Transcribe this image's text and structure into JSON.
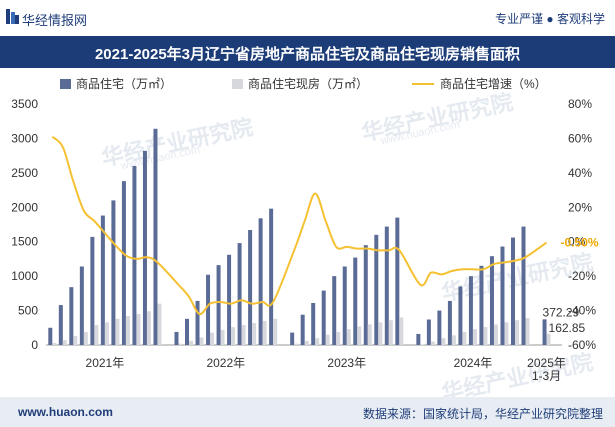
{
  "header": {
    "brand": "华经情报网",
    "slogan": "专业严谨 ● 客观科学"
  },
  "title": "2021-2025年3月辽宁省房地产商品住宅及商品住宅现房销售面积",
  "legend": {
    "sales": "商品住宅（万㎡）",
    "ready": "商品住宅现房（万㎡）",
    "growth": "商品住宅增速（%）"
  },
  "footer": {
    "website": "www.huaon.com",
    "source": "数据来源：国家统计局，华经产业研究院整理"
  },
  "watermark": {
    "text": "华经产业研究院",
    "url": "www.huaon.com"
  },
  "colors": {
    "sales_bar": "#5a6b95",
    "ready_bar": "#d6d8dd",
    "growth_line": "#f5c132",
    "title_bg": "#1c3c78",
    "last_value_label": "#f0a800"
  },
  "chart_data": {
    "type": "bar",
    "y_left": {
      "min": 0,
      "max": 3500,
      "ticks": [
        0,
        500,
        1000,
        1500,
        2000,
        2500,
        3000,
        3500
      ]
    },
    "y_right": {
      "min": -60,
      "max": 80,
      "ticks": [
        "-60%",
        "-40%",
        "-20%",
        "0%",
        "20%",
        "40%",
        "60%",
        "80%"
      ]
    },
    "x_group_labels": [
      "2021年",
      "2022年",
      "2023年",
      "2024年",
      "2025年\n1-3月"
    ],
    "groups": [
      {
        "label": "2021年",
        "sales": [
          250,
          580,
          840,
          1140,
          1570,
          1880,
          2100,
          2380,
          2600,
          2820,
          3140
        ],
        "ready": [
          30,
          70,
          130,
          190,
          290,
          330,
          380,
          420,
          450,
          490,
          600
        ],
        "growth": [
          61,
          55,
          35,
          18,
          12,
          5,
          -2,
          -8,
          -10,
          -9,
          -12
        ]
      },
      {
        "label": "2022年",
        "sales": [
          190,
          380,
          640,
          1020,
          1160,
          1310,
          1480,
          1670,
          1840,
          1980
        ],
        "ready": [
          20,
          60,
          110,
          180,
          220,
          260,
          290,
          320,
          350,
          380
        ],
        "growth": [
          -25,
          -32,
          -42,
          -36,
          -35,
          -36,
          -34,
          -36,
          -35,
          -35
        ]
      },
      {
        "label": "2023年",
        "sales": [
          180,
          440,
          610,
          790,
          1000,
          1140,
          1270,
          1450,
          1600,
          1720,
          1850
        ],
        "ready": [
          20,
          60,
          100,
          150,
          190,
          230,
          270,
          300,
          330,
          360,
          400
        ],
        "growth": [
          -5,
          12,
          28,
          12,
          -3,
          -3,
          -4,
          -4,
          -5,
          -5,
          -5
        ]
      },
      {
        "label": "2024年",
        "sales": [
          160,
          370,
          500,
          640,
          850,
          1000,
          1150,
          1290,
          1430,
          1560,
          1720
        ],
        "ready": [
          10,
          50,
          100,
          140,
          190,
          230,
          260,
          300,
          330,
          360,
          390
        ],
        "growth": [
          -25,
          -18,
          -19,
          -17,
          -16,
          -16,
          -16,
          -13,
          -12,
          -11,
          -9
        ]
      },
      {
        "label": "2025年\n1-3月",
        "sales": [
          372.29
        ],
        "ready": [
          162.85
        ],
        "growth": [
          -0.5
        ]
      }
    ],
    "annotations": {
      "last_sales": "372.29",
      "last_ready": "162.85",
      "last_growth": "-0.50%"
    }
  }
}
